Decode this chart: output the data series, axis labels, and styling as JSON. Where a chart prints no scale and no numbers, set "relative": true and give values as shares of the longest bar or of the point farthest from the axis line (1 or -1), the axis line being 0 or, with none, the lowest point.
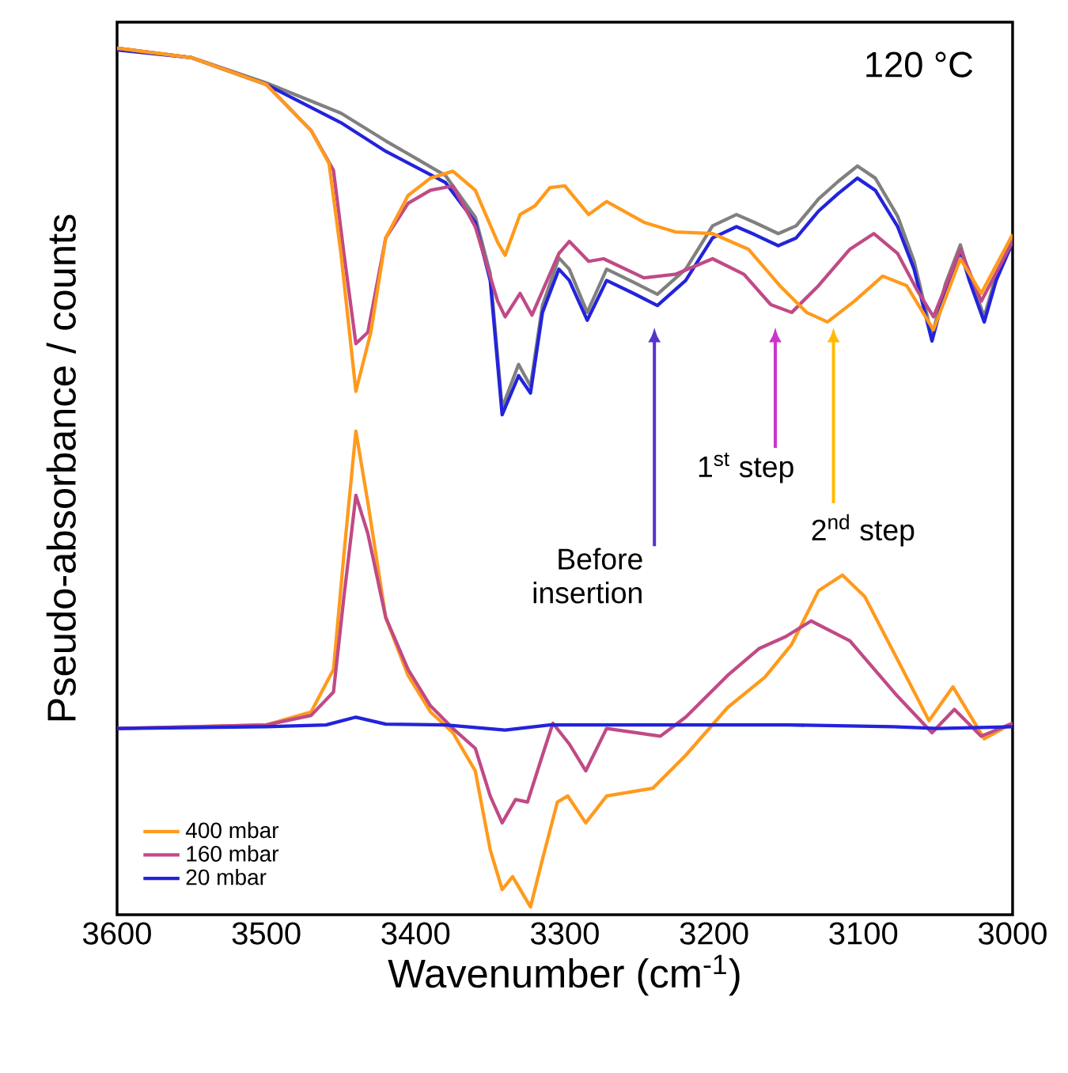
{
  "chart_data": {
    "type": "line",
    "relative": true,
    "xlabel": "Wavenumber (cm$^{-1}$)",
    "ylabel": "Pseudo-absorbance / counts",
    "xlim": [
      3600,
      3000
    ],
    "xticks": [
      3600,
      3500,
      3400,
      3300,
      3200,
      3100,
      3000
    ],
    "legend": "bottom left",
    "annotations": [
      "120 °C",
      "Before insertion",
      "1$^{st}$ step",
      "2$^{nd}$ step"
    ],
    "series": [
      {
        "color": "#808080",
        "x": [
          3600,
          3550,
          3500,
          3450,
          3420,
          3400,
          3380,
          3360,
          3350,
          3342,
          3331,
          3323,
          3315,
          3304,
          3297,
          3285,
          3272,
          3254,
          3238,
          3219,
          3201,
          3185,
          3173,
          3157,
          3145,
          3130,
          3117,
          3104,
          3092,
          3077,
          3066,
          3054,
          3045,
          3035,
          3029,
          3019,
          3011,
          3000
        ],
        "values": [
          1.0,
          0.989,
          0.96,
          0.925,
          0.893,
          0.873,
          0.853,
          0.805,
          0.74,
          0.585,
          0.635,
          0.61,
          0.703,
          0.758,
          0.745,
          0.695,
          0.745,
          0.73,
          0.716,
          0.745,
          0.795,
          0.808,
          0.799,
          0.786,
          0.795,
          0.826,
          0.846,
          0.864,
          0.85,
          0.806,
          0.754,
          0.668,
          0.728,
          0.773,
          0.738,
          0.69,
          0.738,
          0.78
        ]
      },
      {
        "color": "#2323dc",
        "x": [
          3600,
          3550,
          3500,
          3450,
          3420,
          3400,
          3380,
          3360,
          3350,
          3342,
          3331,
          3323,
          3315,
          3304,
          3297,
          3285,
          3272,
          3254,
          3238,
          3219,
          3201,
          3185,
          3173,
          3157,
          3145,
          3130,
          3117,
          3104,
          3092,
          3077,
          3066,
          3054,
          3045,
          3035,
          3029,
          3019,
          3011,
          3000
        ],
        "values": [
          0.998,
          0.989,
          0.958,
          0.914,
          0.881,
          0.863,
          0.845,
          0.799,
          0.732,
          0.577,
          0.622,
          0.602,
          0.695,
          0.745,
          0.732,
          0.686,
          0.732,
          0.717,
          0.703,
          0.732,
          0.781,
          0.794,
          0.785,
          0.772,
          0.781,
          0.812,
          0.832,
          0.85,
          0.836,
          0.794,
          0.745,
          0.662,
          0.721,
          0.766,
          0.732,
          0.684,
          0.732,
          0.776
        ]
      },
      {
        "color": "#c04a86",
        "x": [
          3600,
          3550,
          3500,
          3470,
          3455,
          3448,
          3440,
          3432,
          3420,
          3405,
          3390,
          3375,
          3360,
          3345,
          3340,
          3330,
          3322,
          3304,
          3297,
          3284,
          3274,
          3247,
          3226,
          3201,
          3180,
          3162,
          3148,
          3130,
          3109,
          3093,
          3077,
          3064,
          3053,
          3035,
          3021,
          3000
        ],
        "values": [
          1.0,
          0.989,
          0.958,
          0.905,
          0.859,
          0.763,
          0.659,
          0.672,
          0.781,
          0.821,
          0.836,
          0.841,
          0.794,
          0.708,
          0.69,
          0.717,
          0.692,
          0.763,
          0.777,
          0.754,
          0.757,
          0.735,
          0.739,
          0.757,
          0.739,
          0.704,
          0.695,
          0.726,
          0.768,
          0.786,
          0.763,
          0.721,
          0.69,
          0.768,
          0.708,
          0.777
        ]
      },
      {
        "color": "#ff9a1c",
        "x": [
          3600,
          3550,
          3500,
          3470,
          3458,
          3450,
          3440,
          3430,
          3420,
          3405,
          3390,
          3375,
          3360,
          3345,
          3340,
          3330,
          3320,
          3310,
          3300,
          3284,
          3272,
          3247,
          3226,
          3201,
          3177,
          3156,
          3138,
          3124,
          3106,
          3087,
          3071,
          3053,
          3035,
          3021,
          3000
        ],
        "values": [
          1.0,
          0.989,
          0.958,
          0.905,
          0.867,
          0.763,
          0.604,
          0.672,
          0.781,
          0.83,
          0.85,
          0.858,
          0.836,
          0.776,
          0.761,
          0.808,
          0.818,
          0.839,
          0.841,
          0.808,
          0.823,
          0.799,
          0.788,
          0.786,
          0.768,
          0.726,
          0.695,
          0.684,
          0.708,
          0.737,
          0.726,
          0.675,
          0.757,
          0.717,
          0.785
        ]
      },
      {
        "name": "400 mbar",
        "color": "#ff9a1c",
        "x": [
          3600,
          3500,
          3470,
          3455,
          3448,
          3440,
          3432,
          3420,
          3405,
          3390,
          3375,
          3360,
          3350,
          3342,
          3335,
          3323,
          3315,
          3305,
          3298,
          3286,
          3272,
          3241,
          3219,
          3191,
          3166,
          3148,
          3130,
          3114,
          3099,
          3077,
          3056,
          3040,
          3019,
          3000
        ],
        "values": [
          0.215,
          0.219,
          0.234,
          0.283,
          0.416,
          0.558,
          0.476,
          0.343,
          0.276,
          0.234,
          0.21,
          0.166,
          0.075,
          0.029,
          0.044,
          0.009,
          0.064,
          0.13,
          0.137,
          0.106,
          0.137,
          0.146,
          0.184,
          0.239,
          0.274,
          0.312,
          0.374,
          0.392,
          0.367,
          0.294,
          0.224,
          0.263,
          0.203,
          0.221
        ]
      },
      {
        "name": "160 mbar",
        "color": "#c04a86",
        "x": [
          3600,
          3500,
          3470,
          3455,
          3448,
          3440,
          3432,
          3420,
          3405,
          3390,
          3375,
          3360,
          3350,
          3342,
          3333,
          3325,
          3315,
          3308,
          3297,
          3286,
          3272,
          3236,
          3219,
          3191,
          3170,
          3152,
          3135,
          3109,
          3077,
          3054,
          3039,
          3021,
          3000
        ],
        "values": [
          0.215,
          0.219,
          0.23,
          0.257,
          0.367,
          0.484,
          0.44,
          0.343,
          0.283,
          0.241,
          0.215,
          0.192,
          0.137,
          0.106,
          0.133,
          0.13,
          0.184,
          0.221,
          0.197,
          0.166,
          0.215,
          0.206,
          0.228,
          0.276,
          0.307,
          0.321,
          0.339,
          0.316,
          0.252,
          0.21,
          0.237,
          0.206,
          0.221
        ]
      },
      {
        "name": "20 mbar",
        "color": "#2323dc",
        "x": [
          3600,
          3500,
          3460,
          3440,
          3420,
          3380,
          3340,
          3310,
          3250,
          3150,
          3080,
          3050,
          3000
        ],
        "values": [
          0.215,
          0.217,
          0.219,
          0.228,
          0.22,
          0.219,
          0.213,
          0.219,
          0.219,
          0.219,
          0.217,
          0.215,
          0.217
        ]
      }
    ]
  }
}
